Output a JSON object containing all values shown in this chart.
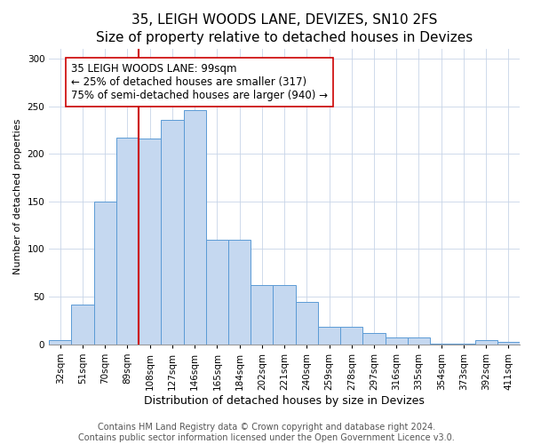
{
  "title": "35, LEIGH WOODS LANE, DEVIZES, SN10 2FS",
  "subtitle": "Size of property relative to detached houses in Devizes",
  "xlabel": "Distribution of detached houses by size in Devizes",
  "ylabel": "Number of detached properties",
  "bar_labels": [
    "32sqm",
    "51sqm",
    "70sqm",
    "89sqm",
    "108sqm",
    "127sqm",
    "146sqm",
    "165sqm",
    "184sqm",
    "202sqm",
    "221sqm",
    "240sqm",
    "259sqm",
    "278sqm",
    "297sqm",
    "316sqm",
    "335sqm",
    "354sqm",
    "373sqm",
    "392sqm",
    "411sqm"
  ],
  "bar_values": [
    4,
    42,
    150,
    217,
    216,
    236,
    246,
    110,
    110,
    62,
    62,
    45,
    18,
    18,
    12,
    7,
    7,
    1,
    1,
    4,
    3
  ],
  "bar_color": "#c5d8f0",
  "bar_edge_color": "#5b9bd5",
  "vline_x_index": 3.5,
  "vline_color": "#cc0000",
  "annotation_text": "35 LEIGH WOODS LANE: 99sqm\n← 25% of detached houses are smaller (317)\n75% of semi-detached houses are larger (940) →",
  "annotation_box_color": "#ffffff",
  "annotation_box_edge": "#cc0000",
  "ylim": [
    0,
    310
  ],
  "yticks": [
    0,
    50,
    100,
    150,
    200,
    250,
    300
  ],
  "footer_line1": "Contains HM Land Registry data © Crown copyright and database right 2024.",
  "footer_line2": "Contains public sector information licensed under the Open Government Licence v3.0.",
  "title_fontsize": 11,
  "xlabel_fontsize": 9,
  "ylabel_fontsize": 8,
  "tick_fontsize": 7.5,
  "annotation_fontsize": 8.5,
  "footer_fontsize": 7
}
